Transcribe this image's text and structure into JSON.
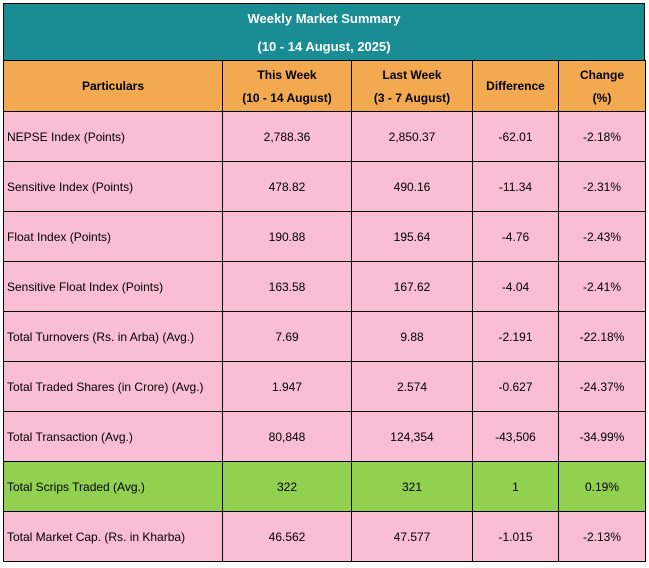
{
  "title": {
    "line1": "Weekly Market Summary",
    "line2": "(10 - 14 August, 2025)"
  },
  "headers": {
    "particulars": "Particulars",
    "this_week": "This Week",
    "this_week_sub": "(10 - 14 August)",
    "last_week": "Last Week",
    "last_week_sub": "(3 - 7 August)",
    "difference": "Difference",
    "change": "Change",
    "change_sub": "(%)"
  },
  "rows": [
    {
      "label": "NEPSE Index (Points)",
      "this_week": "2,788.36",
      "last_week": "2,850.37",
      "difference": "-62.01",
      "change": "-2.18%"
    },
    {
      "label": "Sensitive Index (Points)",
      "this_week": "478.82",
      "last_week": "490.16",
      "difference": "-11.34",
      "change": "-2.31%"
    },
    {
      "label": "Float Index (Points)",
      "this_week": "190.88",
      "last_week": "195.64",
      "difference": "-4.76",
      "change": "-2.43%"
    },
    {
      "label": "Sensitive Float Index (Points)",
      "this_week": "163.58",
      "last_week": "167.62",
      "difference": "-4.04",
      "change": "-2.41%"
    },
    {
      "label": "Total Turnovers (Rs. in Arba) (Avg.)",
      "this_week": "7.69",
      "last_week": "9.88",
      "difference": "-2.191",
      "change": "-22.18%"
    },
    {
      "label": "Total Traded Shares (in Crore) (Avg.)",
      "this_week": "1.947",
      "last_week": "2.574",
      "difference": "-0.627",
      "change": "-24.37%"
    },
    {
      "label": "Total Transaction (Avg.)",
      "this_week": "80,848",
      "last_week": "124,354",
      "difference": "-43,506",
      "change": "-34.99%"
    },
    {
      "label": "Total Scrips Traded (Avg.)",
      "this_week": "322",
      "last_week": "321",
      "difference": "1",
      "change": "0.19%"
    },
    {
      "label": "Total Market Cap. (Rs. in Kharba)",
      "this_week": "46.562",
      "last_week": "47.577",
      "difference": "-1.015",
      "change": "-2.13%"
    }
  ],
  "colors": {
    "title_bg": "#1a8c94",
    "header_bg": "#f2a950",
    "row_bg": "#f9bdd4",
    "highlight_row_bg": "#92d050"
  }
}
